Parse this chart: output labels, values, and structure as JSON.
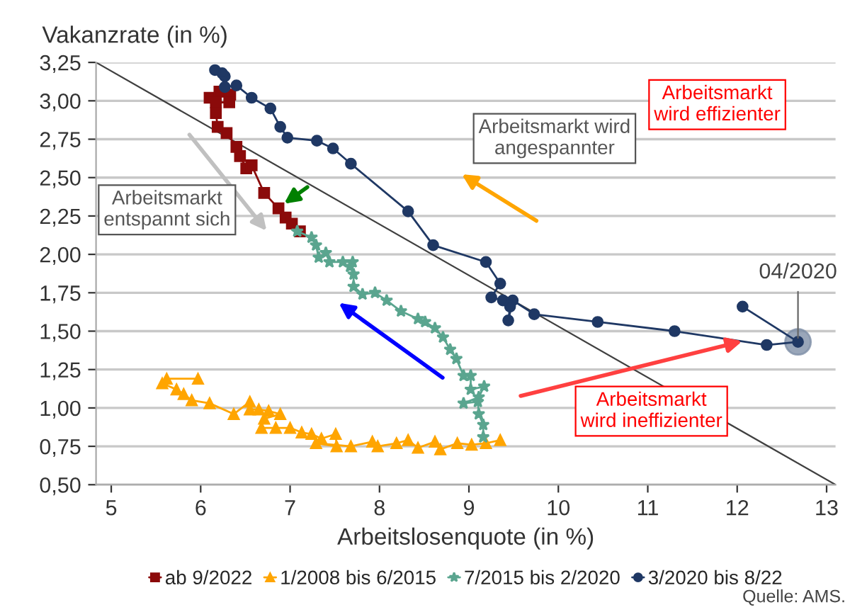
{
  "chart_data": {
    "type": "line",
    "xlabel": "Arbeitslosenquote (in %)",
    "ylabel": "Vakanzrate (in %)",
    "xlim": [
      4.83,
      13.1
    ],
    "ylim": [
      0.5,
      3.25
    ],
    "xticks": [
      5,
      6,
      7,
      8,
      9,
      10,
      11,
      12,
      13
    ],
    "yticks": [
      {
        "value": 0.5,
        "label": "0,50"
      },
      {
        "value": 0.75,
        "label": "0,75"
      },
      {
        "value": 1.0,
        "label": "1,00"
      },
      {
        "value": 1.25,
        "label": "1,25"
      },
      {
        "value": 1.5,
        "label": "1,50"
      },
      {
        "value": 1.75,
        "label": "1,75"
      },
      {
        "value": 2.0,
        "label": "2,00"
      },
      {
        "value": 2.25,
        "label": "2,25"
      },
      {
        "value": 2.5,
        "label": "2,50"
      },
      {
        "value": 2.75,
        "label": "2,75"
      },
      {
        "value": 3.0,
        "label": "3,00"
      },
      {
        "value": 3.25,
        "label": "3,25"
      }
    ],
    "grid": "y",
    "legend": "bottom",
    "series": [
      {
        "type": "line",
        "color": "#404040",
        "marker": "none",
        "x": [
          4.83,
          13.1
        ],
        "values": [
          3.25,
          0.5
        ]
      },
      {
        "name": "ab 9/2022",
        "color": "#8b0a0a",
        "marker": "square",
        "x": [
          6.1,
          6.21,
          6.33,
          6.32,
          6.17,
          6.17,
          6.19,
          6.29,
          6.4,
          6.44,
          6.51,
          6.57,
          6.71,
          6.87,
          6.95,
          7.02,
          7.11
        ],
        "values": [
          3.02,
          3.06,
          3.04,
          2.99,
          2.99,
          2.92,
          2.83,
          2.79,
          2.7,
          2.64,
          2.56,
          2.58,
          2.4,
          2.3,
          2.24,
          2.2,
          2.15
        ]
      },
      {
        "name": "1/2008 bis 6/2015",
        "color": "#ffa500",
        "marker": "triangle",
        "x": [
          5.97,
          5.62,
          5.57,
          5.73,
          5.81,
          5.9,
          6.1,
          6.37,
          6.55,
          6.55,
          6.65,
          6.76,
          6.89,
          6.71,
          6.68,
          6.84,
          7.0,
          7.13,
          7.24,
          7.35,
          7.51,
          7.52,
          7.29,
          7.68,
          7.92,
          7.98,
          8.19,
          8.32,
          8.43,
          8.62,
          8.68,
          8.87,
          9.03,
          9.19,
          9.35
        ],
        "values": [
          1.19,
          1.19,
          1.16,
          1.12,
          1.09,
          1.05,
          1.03,
          0.96,
          1.04,
          0.99,
          0.99,
          0.98,
          0.96,
          0.93,
          0.87,
          0.87,
          0.87,
          0.84,
          0.83,
          0.8,
          0.83,
          0.75,
          0.77,
          0.75,
          0.78,
          0.75,
          0.77,
          0.79,
          0.74,
          0.78,
          0.73,
          0.77,
          0.76,
          0.77,
          0.79
        ]
      },
      {
        "name": "7/2015 bis 2/2020",
        "color": "#5aa58f",
        "marker": "star",
        "x": [
          9.16,
          9.16,
          9.11,
          9.1,
          8.94,
          9.11,
          9.17,
          9.02,
          9.02,
          8.94,
          8.86,
          8.79,
          8.71,
          8.62,
          8.51,
          8.43,
          8.24,
          8.08,
          7.95,
          7.81,
          7.71,
          7.71,
          7.67,
          7.7,
          7.59,
          7.44,
          7.4,
          7.32,
          7.29,
          7.24,
          7.08
        ],
        "values": [
          0.81,
          0.89,
          0.96,
          1.04,
          1.03,
          1.07,
          1.14,
          1.12,
          1.21,
          1.21,
          1.32,
          1.38,
          1.46,
          1.52,
          1.56,
          1.58,
          1.63,
          1.7,
          1.75,
          1.74,
          1.79,
          1.87,
          1.92,
          1.95,
          1.95,
          1.95,
          2.01,
          1.98,
          2.06,
          2.11,
          2.15
        ]
      },
      {
        "name": "3/2020 bis 8/22",
        "color": "#1f3864",
        "marker": "circle",
        "x": [
          12.06,
          12.68,
          12.33,
          11.3,
          10.44,
          9.73,
          9.49,
          9.44,
          9.46,
          9.38,
          9.25,
          9.35,
          9.19,
          8.6,
          8.32,
          7.68,
          7.48,
          7.3,
          6.97,
          6.89,
          6.78,
          6.57,
          6.4,
          6.27,
          6.27,
          6.24,
          6.16
        ],
        "values": [
          1.66,
          1.43,
          1.41,
          1.5,
          1.56,
          1.61,
          1.7,
          1.57,
          1.66,
          1.7,
          1.72,
          1.81,
          1.95,
          2.06,
          2.28,
          2.59,
          2.69,
          2.74,
          2.76,
          2.83,
          2.95,
          3.02,
          3.1,
          3.09,
          3.16,
          3.18,
          3.2
        ]
      }
    ],
    "annotations": [
      "Arbeitsmarkt\nentspannt sich",
      "Arbeitsmarkt\nwird effizienter",
      "Arbeitsmarkt wird\nangespannter",
      "Arbeitsmarkt\nwird ineffizienter",
      {
        "text": "04/2020",
        "x": 12.68,
        "y": 1.43
      },
      "Quelle: AMS."
    ]
  }
}
